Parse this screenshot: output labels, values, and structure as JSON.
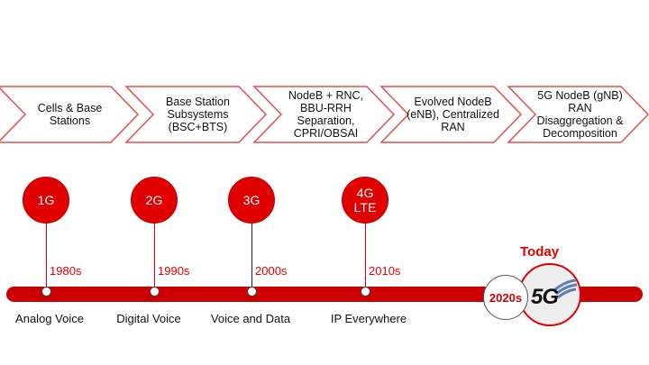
{
  "colors": {
    "accent": "#e00000",
    "bar": "#cc0000",
    "chevron_border": "#e05050"
  },
  "chevrons": [
    {
      "label": "Cells & Base Stations"
    },
    {
      "label": "Base Station Subsystems (BSC+BTS)"
    },
    {
      "label": "NodeB + RNC, BBU-RRH Separation, CPRI/OBSAI"
    },
    {
      "label": "Evolved NodeB (eNB), Centralized RAN"
    },
    {
      "label": "5G NodeB (gNB) RAN Disaggregation & Decomposition"
    }
  ],
  "generations": [
    {
      "label": "1G",
      "year": "1980s",
      "era": "Analog Voice"
    },
    {
      "label": "2G",
      "year": "1990s",
      "era": "Digital Voice"
    },
    {
      "label": "3G",
      "year": "2000s",
      "era": "Voice and Data"
    },
    {
      "label": "4G LTE",
      "year": "2010s",
      "era": "IP Everywhere"
    }
  ],
  "current": {
    "today_label": "Today",
    "year": "2020s",
    "logo_text": "5G",
    "icon": "5g-logo-icon"
  }
}
